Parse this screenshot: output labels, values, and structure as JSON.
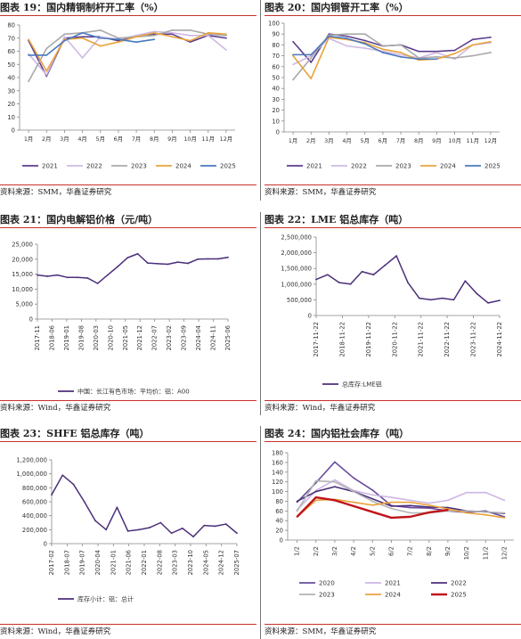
{
  "charts": [
    {
      "title": "图表 19：国内精铜制杆开工率（%）",
      "source": "资料来源：SMM，华鑫证券研究",
      "chart_data": {
        "type": "line",
        "categories": [
          "1月",
          "2月",
          "3月",
          "4月",
          "5月",
          "6月",
          "7月",
          "8月",
          "9月",
          "10月",
          "11月",
          "12月"
        ],
        "ylim": [
          0,
          80
        ],
        "yticks": [
          0,
          10,
          20,
          30,
          40,
          50,
          60,
          70,
          80
        ],
        "grid": false,
        "legend": "bottom",
        "series": [
          {
            "name": "2021",
            "color": "#5b3e8e",
            "values": [
              68,
              41,
              70,
              71,
              71,
              68,
              72,
              73,
              73,
              67,
              72,
              70
            ]
          },
          {
            "name": "2022",
            "color": "#cfb8e3",
            "values": [
              58,
              42,
              71,
              55,
              71,
              69,
              72,
              75,
              74,
              72,
              72,
              61
            ]
          },
          {
            "name": "2023",
            "color": "#a9a9a9",
            "values": [
              37,
              62,
              73,
              74,
              76,
              70,
              71,
              72,
              76,
              76,
              73,
              72
            ]
          },
          {
            "name": "2024",
            "color": "#e8a23b",
            "values": [
              69,
              45,
              69,
              70,
              64,
              67,
              71,
              74,
              71,
              68,
              74,
              73
            ]
          },
          {
            "name": "2025",
            "color": "#4a79bd",
            "values": [
              57,
              57,
              68,
              74,
              70,
              69,
              67,
              69,
              null,
              null,
              null,
              null
            ]
          }
        ]
      }
    },
    {
      "title": "图表 20：国内铜管开工率（%）",
      "source": "资料来源：SMM，华鑫证券研究",
      "chart_data": {
        "type": "line",
        "categories": [
          "1月",
          "2月",
          "3月",
          "4月",
          "5月",
          "6月",
          "7月",
          "8月",
          "9月",
          "10月",
          "11月",
          "12月"
        ],
        "ylim": [
          0,
          100
        ],
        "yticks": [
          0,
          10,
          20,
          30,
          40,
          50,
          60,
          70,
          80,
          90,
          100
        ],
        "grid": false,
        "legend": "bottom",
        "series": [
          {
            "name": "2021",
            "color": "#5b3e8e",
            "values": [
              83,
              64,
              90,
              88,
              84,
              79,
              80,
              74,
              74,
              75,
              85,
              87
            ]
          },
          {
            "name": "2022",
            "color": "#cfb8e3",
            "values": [
              62,
              70,
              86,
              79,
              77,
              74,
              71,
              68,
              73,
              67,
              80,
              82
            ]
          },
          {
            "name": "2023",
            "color": "#a9a9a9",
            "values": [
              48,
              68,
              89,
              90,
              90,
              79,
              80,
              68,
              69,
              68,
              70,
              73
            ]
          },
          {
            "name": "2024",
            "color": "#e8a23b",
            "values": [
              70,
              49,
              87,
              85,
              82,
              76,
              73,
              66,
              67,
              72,
              80,
              83
            ]
          },
          {
            "name": "2025",
            "color": "#4a79bd",
            "values": [
              71,
              71,
              88,
              86,
              81,
              73,
              69,
              67,
              67,
              null,
              null,
              null
            ]
          }
        ]
      }
    },
    {
      "title": "图表 21：国内电解铝价格（元/吨）",
      "source": "资料来源：Wind，华鑫证券研究",
      "chart_data": {
        "type": "line",
        "x": [
          "2017-11",
          "2018-04",
          "2018-09",
          "2019-02",
          "2019-07",
          "2019-12",
          "2020-05",
          "2020-10",
          "2021-03",
          "2021-08",
          "2022-01",
          "2022-06",
          "2022-11",
          "2023-04",
          "2023-09",
          "2024-02",
          "2024-07",
          "2024-12",
          "2025-05",
          "2025-08"
        ],
        "xticks": [
          "2017-11",
          "2018-06",
          "2019-01",
          "2019-08",
          "2020-03",
          "2020-10",
          "2021-05",
          "2021-12",
          "2022-07",
          "2023-02",
          "2023-09",
          "2024-04",
          "2024-11",
          "2025-06"
        ],
        "ylim": [
          0,
          25000
        ],
        "yticks": [
          0,
          5000,
          10000,
          15000,
          20000,
          25000
        ],
        "grid": false,
        "legend": "bottom",
        "series": [
          {
            "name": "中国：长江有色市场：平均价：铝：A00",
            "color": "#4b2f7a",
            "values": [
              14700,
              14300,
              14700,
              13900,
              13900,
              13700,
              11900,
              14700,
              17500,
              20500,
              21800,
              18700,
              18500,
              18300,
              19000,
              18600,
              20000,
              20100,
              20100,
              20600
            ]
          }
        ]
      }
    },
    {
      "title": "图表 22：LME 铝总库存（吨）",
      "source": "资料来源：Wind，华鑫证券研究",
      "chart_data": {
        "type": "line",
        "x": [
          "2017-11",
          "2018-05",
          "2018-11",
          "2019-05",
          "2019-11",
          "2020-05",
          "2020-11",
          "2021-05",
          "2021-11",
          "2022-05",
          "2022-11",
          "2023-05",
          "2023-11",
          "2024-05",
          "2024-11",
          "2025-05",
          "2025-08"
        ],
        "xticks": [
          "2017-11-22",
          "2018-11-22",
          "2019-11-22",
          "2020-11-22",
          "2021-11-22",
          "2022-11-22",
          "2023-11-22",
          "2024-11-22"
        ],
        "ylim": [
          0,
          2500000
        ],
        "yticks": [
          0,
          500000,
          1000000,
          1500000,
          2000000,
          2500000
        ],
        "grid": false,
        "legend": "bottom",
        "series": [
          {
            "name": "总库存:LME铝",
            "color": "#4b2f7a",
            "values": [
              1150000,
              1300000,
              1050000,
              1000000,
              1400000,
              1300000,
              1600000,
              1900000,
              1050000,
              550000,
              500000,
              550000,
              500000,
              1100000,
              700000,
              400000,
              480000
            ]
          }
        ]
      }
    },
    {
      "title": "图表 23：SHFE 铝总库存（吨）",
      "source": "资料来源：Wind，华鑫证券研究",
      "chart_data": {
        "type": "line",
        "x": [
          "2017-02",
          "2017-08",
          "2018-03",
          "2018-09",
          "2019-04",
          "2019-10",
          "2020-03",
          "2020-09",
          "2021-03",
          "2021-09",
          "2022-03",
          "2022-09",
          "2023-03",
          "2023-09",
          "2024-03",
          "2024-09",
          "2025-03",
          "2025-07"
        ],
        "xticks": [
          "2017-02",
          "2018-07",
          "2019-07",
          "2020-04",
          "2021-01",
          "2021-06",
          "2022-01",
          "2022-08",
          "2023-03",
          "2023-10",
          "2024-05",
          "2024-12",
          "2025-07"
        ],
        "ylim": [
          0,
          1200000
        ],
        "yticks": [
          0,
          200000,
          400000,
          600000,
          800000,
          1000000,
          1200000
        ],
        "grid": false,
        "legend": "bottom",
        "series": [
          {
            "name": "库存小计：铝：总计",
            "color": "#4b2f7a",
            "values": [
              700000,
              980000,
              850000,
              600000,
              330000,
              200000,
              520000,
              180000,
              200000,
              230000,
              300000,
              150000,
              220000,
              100000,
              260000,
              250000,
              280000,
              150000
            ]
          }
        ]
      }
    },
    {
      "title": "图表 24：国内铝社会库存（吨）",
      "source": "资料来源：SMM，华鑫证券研究",
      "chart_data": {
        "type": "line",
        "categories": [
          "1/2",
          "2/2",
          "3/2",
          "4/2",
          "5/2",
          "6/2",
          "7/2",
          "8/2",
          "9/2",
          "10/2",
          "11/2",
          "12/2"
        ],
        "ylim": [
          0,
          180
        ],
        "yticks": [
          0,
          20,
          40,
          60,
          80,
          100,
          120,
          140,
          160,
          180
        ],
        "grid": false,
        "legend": "bottom",
        "series": [
          {
            "name": "2020",
            "color": "#6a4b9e",
            "values": [
              78,
              118,
              161,
              128,
              103,
              71,
              67,
              66,
              60,
              57,
              60,
              48
            ]
          },
          {
            "name": "2021",
            "color": "#cdb6e6",
            "values": [
              62,
              102,
              124,
              102,
              93,
              88,
              82,
              76,
              82,
              98,
              98,
              82
            ]
          },
          {
            "name": "2022",
            "color": "#4b2f7a",
            "values": [
              80,
              100,
              110,
              100,
              85,
              70,
              71,
              68,
              67,
              60,
              58,
              55
            ]
          },
          {
            "name": "2023",
            "color": "#b3b3b3",
            "values": [
              60,
              122,
              120,
              100,
              80,
              65,
              56,
              56,
              60,
              60,
              58,
              56
            ]
          },
          {
            "name": "2024",
            "color": "#e8a23b",
            "values": [
              48,
              82,
              84,
              78,
              72,
              78,
              78,
              72,
              64,
              56,
              52,
              46
            ]
          },
          {
            "name": "2025",
            "color": "#c0141a",
            "values": [
              48,
              88,
              82,
              70,
              58,
              46,
              48,
              57,
              62,
              null,
              null,
              null
            ]
          }
        ]
      }
    }
  ]
}
